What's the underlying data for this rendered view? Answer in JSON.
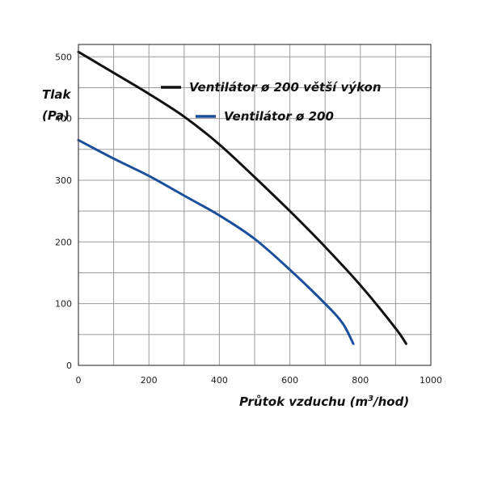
{
  "chart_data": {
    "type": "line",
    "title": "",
    "ylabel_line1": "Tlak",
    "ylabel_line2": "(Pa)",
    "xlabel_main": "Průtok vzduchu (m",
    "xlabel_sup": "3",
    "xlabel_tail": "/hod)",
    "xlim": [
      0,
      1000
    ],
    "ylim": [
      0,
      520
    ],
    "xticks": [
      0,
      200,
      400,
      600,
      800,
      1000
    ],
    "yticks": [
      0,
      100,
      200,
      300,
      400,
      500
    ],
    "grid": true,
    "legend_position": "top-right",
    "series": [
      {
        "name": "Ventilátor ø 200 větší výkon",
        "color": "#111111",
        "points": [
          [
            0,
            508
          ],
          [
            100,
            474
          ],
          [
            200,
            440
          ],
          [
            300,
            403
          ],
          [
            400,
            358
          ],
          [
            500,
            305
          ],
          [
            600,
            250
          ],
          [
            700,
            192
          ],
          [
            800,
            130
          ],
          [
            900,
            60
          ],
          [
            930,
            35
          ]
        ]
      },
      {
        "name": "Ventilátor ø 200",
        "color": "#1a4f9c",
        "points": [
          [
            0,
            365
          ],
          [
            100,
            335
          ],
          [
            200,
            307
          ],
          [
            300,
            275
          ],
          [
            400,
            243
          ],
          [
            500,
            205
          ],
          [
            600,
            155
          ],
          [
            700,
            100
          ],
          [
            750,
            68
          ],
          [
            780,
            35
          ]
        ]
      }
    ]
  }
}
